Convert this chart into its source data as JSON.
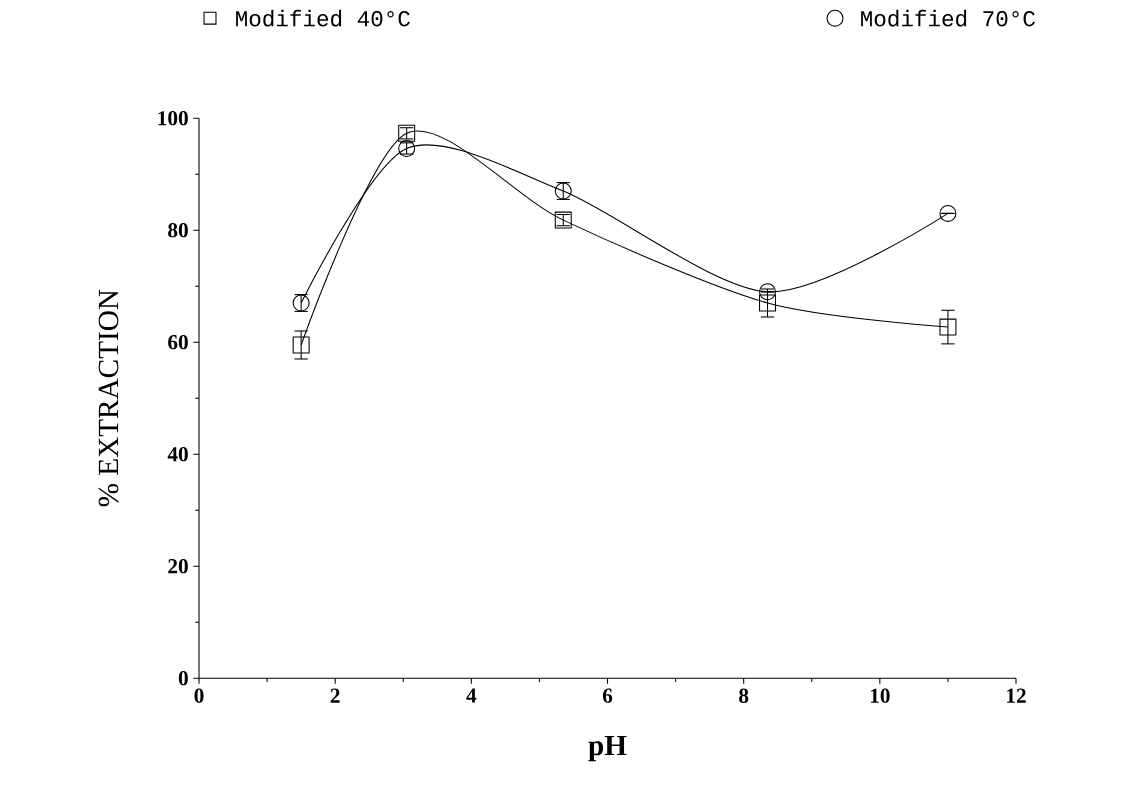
{
  "chart_data": {
    "type": "line",
    "xlabel": "pH",
    "ylabel": "% EXTRACTION",
    "xlim": [
      0,
      12
    ],
    "ylim": [
      0,
      100
    ],
    "xticks": [
      0,
      2,
      4,
      6,
      8,
      10,
      12
    ],
    "yticks": [
      0,
      20,
      40,
      60,
      80,
      100
    ],
    "x": [
      1.5,
      3.05,
      5.35,
      8.35,
      11
    ],
    "series": [
      {
        "name": "Modified 40°C",
        "color": "#000000",
        "marker": "square",
        "values": [
          59.5,
          97.3,
          81.8,
          67,
          62.7
        ],
        "errors": [
          2.5,
          1,
          1,
          2.5,
          3
        ]
      },
      {
        "name": "Modified 70°C",
        "color": "#000000",
        "marker": "circle",
        "values": [
          67,
          94.6,
          87,
          69,
          83
        ],
        "errors": [
          1.5,
          1,
          1.5,
          null,
          null
        ]
      }
    ],
    "legend": "top",
    "line_style": "solid"
  }
}
